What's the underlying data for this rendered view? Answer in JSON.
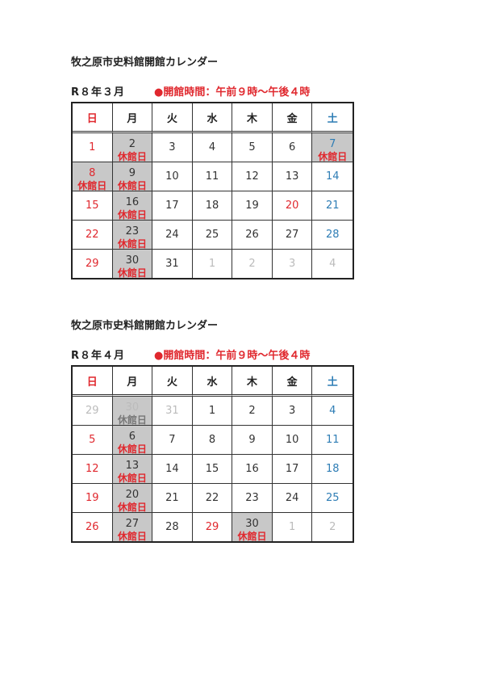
{
  "colors": {
    "red": "#e0282e",
    "blue": "#2e7db5",
    "gray": "#bbbbbb",
    "closed_bg": "#c8c8c8"
  },
  "closed_label": "休館日",
  "weekdays": [
    "日",
    "月",
    "火",
    "水",
    "木",
    "金",
    "土"
  ],
  "calendars": [
    {
      "title": "牧之原市史料館開館カレンダー",
      "month": "R８年３月",
      "hours": "●開館時間：午前９時～午後４時",
      "cells": [
        {
          "d": "1",
          "t": "sun"
        },
        {
          "d": "2",
          "c": true
        },
        {
          "d": "3"
        },
        {
          "d": "4"
        },
        {
          "d": "5"
        },
        {
          "d": "6"
        },
        {
          "d": "7",
          "t": "sat",
          "c": true
        },
        {
          "d": "8",
          "t": "sun",
          "c": true
        },
        {
          "d": "9",
          "c": true
        },
        {
          "d": "10"
        },
        {
          "d": "11"
        },
        {
          "d": "12"
        },
        {
          "d": "13"
        },
        {
          "d": "14",
          "t": "sat"
        },
        {
          "d": "15",
          "t": "sun"
        },
        {
          "d": "16",
          "c": true
        },
        {
          "d": "17"
        },
        {
          "d": "18"
        },
        {
          "d": "19"
        },
        {
          "d": "20",
          "t": "hol"
        },
        {
          "d": "21",
          "t": "sat"
        },
        {
          "d": "22",
          "t": "sun"
        },
        {
          "d": "23",
          "c": true
        },
        {
          "d": "24"
        },
        {
          "d": "25"
        },
        {
          "d": "26"
        },
        {
          "d": "27"
        },
        {
          "d": "28",
          "t": "sat"
        },
        {
          "d": "29",
          "t": "sun"
        },
        {
          "d": "30",
          "c": true
        },
        {
          "d": "31"
        },
        {
          "d": "1",
          "t": "other"
        },
        {
          "d": "2",
          "t": "other"
        },
        {
          "d": "3",
          "t": "other"
        },
        {
          "d": "4",
          "t": "other"
        }
      ]
    },
    {
      "title": "牧之原市史料館開館カレンダー",
      "month": "R８年４月",
      "hours": "●開館時間：午前９時～午後４時",
      "cells": [
        {
          "d": "29",
          "t": "other"
        },
        {
          "d": "30",
          "t": "other",
          "c": true
        },
        {
          "d": "31",
          "t": "other"
        },
        {
          "d": "1"
        },
        {
          "d": "2"
        },
        {
          "d": "3"
        },
        {
          "d": "4",
          "t": "sat"
        },
        {
          "d": "5",
          "t": "sun"
        },
        {
          "d": "6",
          "c": true
        },
        {
          "d": "7"
        },
        {
          "d": "8"
        },
        {
          "d": "9"
        },
        {
          "d": "10"
        },
        {
          "d": "11",
          "t": "sat"
        },
        {
          "d": "12",
          "t": "sun"
        },
        {
          "d": "13",
          "c": true
        },
        {
          "d": "14"
        },
        {
          "d": "15"
        },
        {
          "d": "16"
        },
        {
          "d": "17"
        },
        {
          "d": "18",
          "t": "sat"
        },
        {
          "d": "19",
          "t": "sun"
        },
        {
          "d": "20",
          "c": true
        },
        {
          "d": "21"
        },
        {
          "d": "22"
        },
        {
          "d": "23"
        },
        {
          "d": "24"
        },
        {
          "d": "25",
          "t": "sat"
        },
        {
          "d": "26",
          "t": "sun"
        },
        {
          "d": "27",
          "c": true
        },
        {
          "d": "28"
        },
        {
          "d": "29",
          "t": "hol"
        },
        {
          "d": "30",
          "c": true
        },
        {
          "d": "1",
          "t": "other"
        },
        {
          "d": "2",
          "t": "other"
        }
      ]
    }
  ]
}
